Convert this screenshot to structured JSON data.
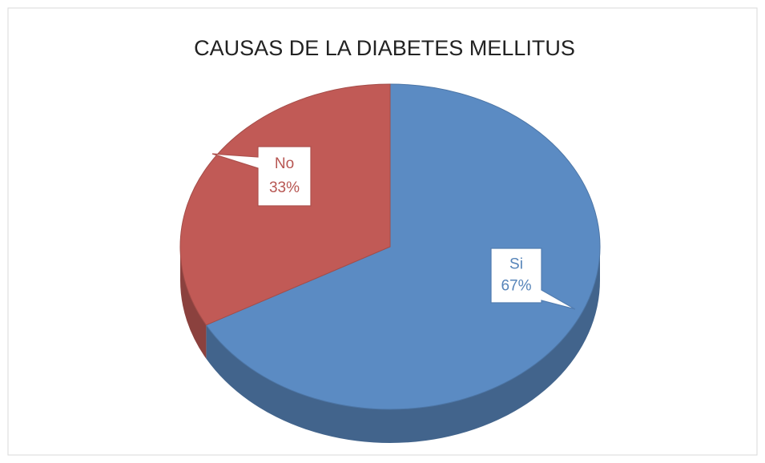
{
  "chart_data": {
    "type": "pie",
    "title": "CAUSAS DE LA DIABETES MELLITUS",
    "categories": [
      "Si",
      "No"
    ],
    "values": [
      67,
      33
    ],
    "value_labels": [
      "67%",
      "33%"
    ],
    "colors": [
      "#5b8bc3",
      "#c15a56"
    ],
    "three_d": true
  }
}
